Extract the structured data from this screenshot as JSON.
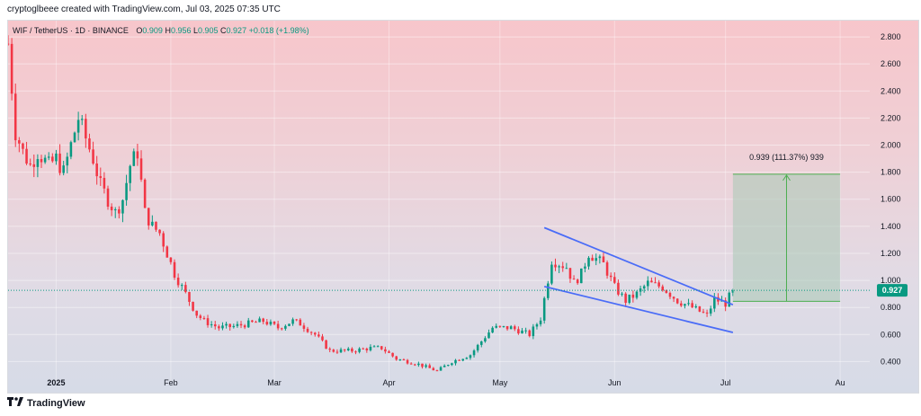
{
  "header": {
    "text": "cryptoglbeee created with TradingView.com, Jul 03, 2025 07:35 UTC"
  },
  "legend": {
    "pair": "WIF / TetherUS · 1D · BINANCE",
    "open_label": "O",
    "open": "0.909",
    "high_label": "H",
    "high": "0.956",
    "low_label": "L",
    "low": "0.905",
    "close_label": "C",
    "close": "0.927",
    "change": "+0.018 (+1.98%)"
  },
  "footer": {
    "brand": "TradingView"
  },
  "colors": {
    "up": "#089981",
    "down": "#f23645",
    "trendline": "#4a6cf7",
    "measure_fill": "#a8c8b4",
    "measure_stroke": "#4caf50",
    "price_tag": "#089981"
  },
  "chart_data": {
    "type": "candlestick",
    "y_ticks": [
      "2.800",
      "2.600",
      "2.400",
      "2.200",
      "2.000",
      "1.800",
      "1.600",
      "1.400",
      "1.200",
      "1.000",
      "0.800",
      "0.600",
      "0.400"
    ],
    "ylim": [
      0.25,
      2.92
    ],
    "x_ticks": [
      {
        "label": "2025",
        "day": 0
      },
      {
        "label": "Feb",
        "day": 31
      },
      {
        "label": "Mar",
        "day": 59
      },
      {
        "label": "Apr",
        "day": 90
      },
      {
        "label": "May",
        "day": 120
      },
      {
        "label": "Jun",
        "day": 151
      },
      {
        "label": "Jul",
        "day": 181
      },
      {
        "label": "Au",
        "day": 212
      }
    ],
    "xlim": [
      -13,
      220
    ],
    "last_price": "0.927",
    "last_price_value": 0.927,
    "candle_path": [
      [
        -13,
        2.75
      ],
      [
        -11,
        2.1
      ],
      [
        -9,
        1.95
      ],
      [
        -7,
        1.85
      ],
      [
        -5,
        1.95
      ],
      [
        -2,
        1.85
      ],
      [
        0,
        1.9
      ],
      [
        2,
        1.8
      ],
      [
        4,
        2.0
      ],
      [
        6,
        2.2
      ],
      [
        8,
        2.05
      ],
      [
        10,
        1.9
      ],
      [
        12,
        1.7
      ],
      [
        14,
        1.6
      ],
      [
        16,
        1.5
      ],
      [
        18,
        1.6
      ],
      [
        20,
        1.85
      ],
      [
        22,
        1.95
      ],
      [
        24,
        1.5
      ],
      [
        26,
        1.4
      ],
      [
        28,
        1.35
      ],
      [
        30,
        1.2
      ],
      [
        32,
        1.05
      ],
      [
        34,
        0.95
      ],
      [
        36,
        0.85
      ],
      [
        38,
        0.75
      ],
      [
        40,
        0.7
      ],
      [
        44,
        0.65
      ],
      [
        48,
        0.66
      ],
      [
        52,
        0.68
      ],
      [
        56,
        0.7
      ],
      [
        60,
        0.65
      ],
      [
        64,
        0.7
      ],
      [
        66,
        0.68
      ],
      [
        70,
        0.6
      ],
      [
        74,
        0.48
      ],
      [
        80,
        0.48
      ],
      [
        85,
        0.5
      ],
      [
        88,
        0.5
      ],
      [
        92,
        0.42
      ],
      [
        98,
        0.38
      ],
      [
        103,
        0.33
      ],
      [
        107,
        0.4
      ],
      [
        112,
        0.45
      ],
      [
        118,
        0.65
      ],
      [
        123,
        0.65
      ],
      [
        128,
        0.6
      ],
      [
        131,
        0.72
      ],
      [
        134,
        1.15
      ],
      [
        138,
        1.1
      ],
      [
        140,
        0.98
      ],
      [
        142,
        1.05
      ],
      [
        144,
        1.2
      ],
      [
        148,
        1.12
      ],
      [
        151,
        0.95
      ],
      [
        154,
        0.85
      ],
      [
        157,
        0.9
      ],
      [
        160,
        0.98
      ],
      [
        164,
        0.95
      ],
      [
        168,
        0.85
      ],
      [
        172,
        0.8
      ],
      [
        176,
        0.74
      ],
      [
        178,
        0.86
      ],
      [
        181,
        0.83
      ],
      [
        183,
        0.927
      ]
    ],
    "trendlines": [
      {
        "name": "upper",
        "points": [
          [
            132,
            1.39
          ],
          [
            183,
            0.82
          ]
        ]
      },
      {
        "name": "lower",
        "points": [
          [
            132,
            0.955
          ],
          [
            183,
            0.615
          ]
        ]
      }
    ],
    "measurement": {
      "label": "0.939 (111.37%) 939",
      "x_start": 183,
      "x_end": 212,
      "y_low": 0.845,
      "y_high": 1.785
    }
  }
}
